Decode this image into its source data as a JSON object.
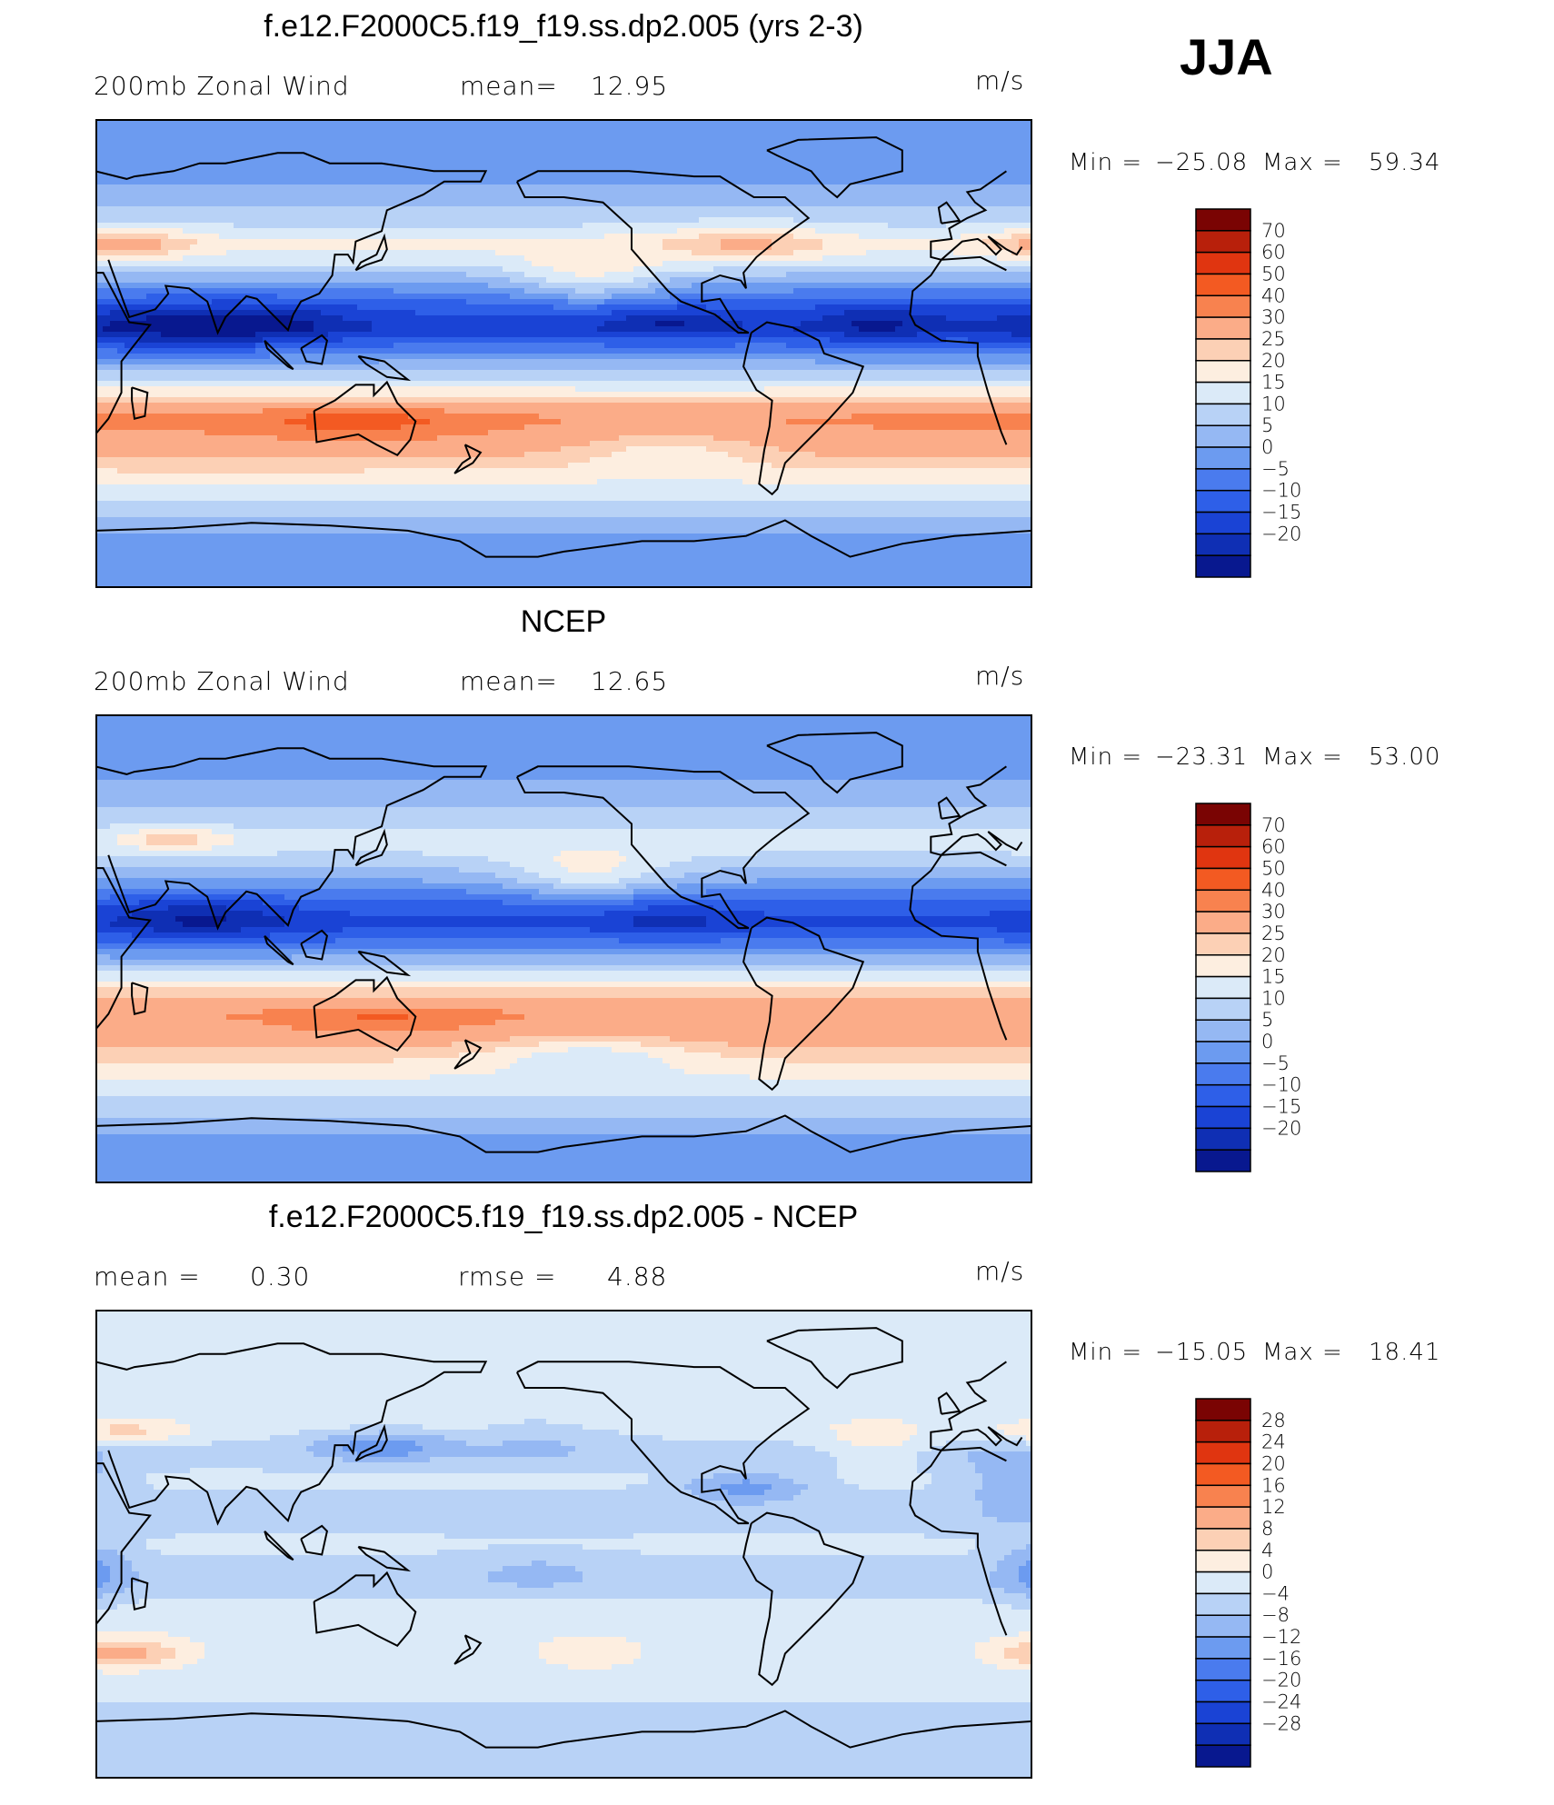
{
  "header": {
    "season": "JJA"
  },
  "panels": [
    {
      "id": "model",
      "title": "f.e12.F2000C5.f19_f19.ss.dp2.005 (yrs 2-3)",
      "left_label": "200mb  Zonal  Wind",
      "stat_label": "mean=",
      "stat_value": "12.95",
      "units": "m/s",
      "min_label": "Min  =",
      "min_value": "−25.08",
      "max_label": "Max  =",
      "max_value": "59.34",
      "colorbar": {
        "colors": [
          "#7a0403",
          "#b8200b",
          "#e03510",
          "#f35a22",
          "#f8824f",
          "#fbac88",
          "#fcd0b5",
          "#fdeee0",
          "#dbeaf8",
          "#b8d2f6",
          "#95b8f3",
          "#6c9bf0",
          "#4a7bee",
          "#2e5fe8",
          "#1a43d5",
          "#0f2fb4",
          "#08188f"
        ],
        "labels": [
          "70",
          "60",
          "50",
          "40",
          "30",
          "25",
          "20",
          "15",
          "10",
          "5",
          "0",
          "−5",
          "−10",
          "−15",
          "−20"
        ]
      },
      "field": {
        "bands": [
          {
            "lat": 90,
            "v": 3
          },
          {
            "lat": 72,
            "v": 2
          },
          {
            "lat": 62,
            "v": 6
          },
          {
            "lat": 50,
            "v": 14
          },
          {
            "lat": 42,
            "v": 22
          },
          {
            "lat": 35,
            "v": 16
          },
          {
            "lat": 27,
            "v": 4
          },
          {
            "lat": 18,
            "v": -8
          },
          {
            "lat": 10,
            "v": -14
          },
          {
            "lat": 4,
            "v": -6
          },
          {
            "lat": -5,
            "v": 8
          },
          {
            "lat": -15,
            "v": 22
          },
          {
            "lat": -25,
            "v": 42
          },
          {
            "lat": -32,
            "v": 38
          },
          {
            "lat": -42,
            "v": 28
          },
          {
            "lat": -52,
            "v": 18
          },
          {
            "lat": -62,
            "v": 10
          },
          {
            "lat": -72,
            "v": 3
          },
          {
            "lat": -90,
            "v": 0
          }
        ],
        "blobs": [
          {
            "lon": 60,
            "lat": 10,
            "rx": 45,
            "ry": 10,
            "dv": -10
          },
          {
            "lon": 100,
            "lat": 12,
            "rx": 30,
            "ry": 8,
            "dv": -6
          },
          {
            "lon": 250,
            "lat": 12,
            "rx": 25,
            "ry": 6,
            "dv": -8
          },
          {
            "lon": 330,
            "lat": 12,
            "rx": 25,
            "ry": 8,
            "dv": -8
          },
          {
            "lon": 220,
            "lat": 28,
            "rx": 30,
            "ry": 10,
            "dv": 12
          },
          {
            "lon": 130,
            "lat": -26,
            "rx": 40,
            "ry": 6,
            "dv": 14
          },
          {
            "lon": 280,
            "lat": 42,
            "rx": 30,
            "ry": 8,
            "dv": 10
          },
          {
            "lon": 40,
            "lat": 42,
            "rx": 25,
            "ry": 6,
            "dv": 14
          },
          {
            "lon": 250,
            "lat": -35,
            "rx": 40,
            "ry": 10,
            "dv": -10
          }
        ]
      }
    },
    {
      "id": "ncep",
      "title": "NCEP",
      "left_label": "200mb  Zonal  Wind",
      "stat_label": "mean=",
      "stat_value": "12.65",
      "units": "m/s",
      "min_label": "Min  =",
      "min_value": "−23.31",
      "max_label": "Max  =",
      "max_value": "53.00",
      "colorbar": {
        "colors": [
          "#7a0403",
          "#b8200b",
          "#e03510",
          "#f35a22",
          "#f8824f",
          "#fbac88",
          "#fcd0b5",
          "#fdeee0",
          "#dbeaf8",
          "#b8d2f6",
          "#95b8f3",
          "#6c9bf0",
          "#4a7bee",
          "#2e5fe8",
          "#1a43d5",
          "#0f2fb4",
          "#08188f"
        ],
        "labels": [
          "70",
          "60",
          "50",
          "40",
          "30",
          "25",
          "20",
          "15",
          "10",
          "5",
          "0",
          "−5",
          "−10",
          "−15",
          "−20"
        ]
      },
      "field": {
        "bands": [
          {
            "lat": 90,
            "v": 4
          },
          {
            "lat": 72,
            "v": 3
          },
          {
            "lat": 62,
            "v": 6
          },
          {
            "lat": 50,
            "v": 12
          },
          {
            "lat": 42,
            "v": 18
          },
          {
            "lat": 35,
            "v": 14
          },
          {
            "lat": 27,
            "v": 6
          },
          {
            "lat": 18,
            "v": -6
          },
          {
            "lat": 10,
            "v": -12
          },
          {
            "lat": 4,
            "v": -6
          },
          {
            "lat": -5,
            "v": 8
          },
          {
            "lat": -15,
            "v": 24
          },
          {
            "lat": -25,
            "v": 40
          },
          {
            "lat": -32,
            "v": 36
          },
          {
            "lat": -42,
            "v": 26
          },
          {
            "lat": -52,
            "v": 18
          },
          {
            "lat": -62,
            "v": 12
          },
          {
            "lat": -72,
            "v": 5
          },
          {
            "lat": -90,
            "v": 2
          }
        ],
        "blobs": [
          {
            "lon": 70,
            "lat": 12,
            "rx": 35,
            "ry": 8,
            "dv": -10
          },
          {
            "lon": 250,
            "lat": 12,
            "rx": 25,
            "ry": 6,
            "dv": -6
          },
          {
            "lon": 220,
            "lat": 28,
            "rx": 30,
            "ry": 10,
            "dv": 12
          },
          {
            "lon": 140,
            "lat": -27,
            "rx": 35,
            "ry": 5,
            "dv": 12
          },
          {
            "lon": 60,
            "lat": 42,
            "rx": 20,
            "ry": 5,
            "dv": 10
          },
          {
            "lon": 220,
            "lat": -40,
            "rx": 40,
            "ry": 8,
            "dv": -10
          }
        ]
      }
    },
    {
      "id": "diff",
      "title": "f.e12.F2000C5.f19_f19.ss.dp2.005 - NCEP",
      "left_label": "mean  =",
      "left_value": "0.30",
      "stat_label": "rmse  =",
      "stat_value": "4.88",
      "units": "m/s",
      "min_label": "Min  =",
      "min_value": "−15.05",
      "max_label": "Max  =",
      "max_value": "18.41",
      "colorbar": {
        "colors": [
          "#7a0403",
          "#b8200b",
          "#e03510",
          "#f35a22",
          "#f8824f",
          "#fbac88",
          "#fcd0b5",
          "#fdeee0",
          "#dbeaf8",
          "#b8d2f6",
          "#95b8f3",
          "#6c9bf0",
          "#4a7bee",
          "#2e5fe8",
          "#1a43d5",
          "#0f2fb4",
          "#08188f"
        ],
        "labels": [
          "28",
          "24",
          "20",
          "16",
          "12",
          "8",
          "4",
          "0",
          "−4",
          "−8",
          "−12",
          "−16",
          "−20",
          "−24",
          "−28"
        ]
      },
      "field": {
        "bands": [
          {
            "lat": 90,
            "v": 1
          },
          {
            "lat": 70,
            "v": 1
          },
          {
            "lat": 55,
            "v": 1
          },
          {
            "lat": 45,
            "v": 2
          },
          {
            "lat": 35,
            "v": -2
          },
          {
            "lat": 25,
            "v": 1
          },
          {
            "lat": 10,
            "v": -2
          },
          {
            "lat": 0,
            "v": 1
          },
          {
            "lat": -15,
            "v": -2
          },
          {
            "lat": -28,
            "v": 3
          },
          {
            "lat": -40,
            "v": 2
          },
          {
            "lat": -55,
            "v": 1
          },
          {
            "lat": -70,
            "v": -2
          },
          {
            "lat": -90,
            "v": -2
          }
        ],
        "blobs": [
          {
            "lon": 20,
            "lat": 25,
            "rx": 20,
            "ry": 15,
            "dv": -6
          },
          {
            "lon": 30,
            "lat": -10,
            "rx": 15,
            "ry": 12,
            "dv": -8
          },
          {
            "lon": 140,
            "lat": 38,
            "rx": 25,
            "ry": 6,
            "dv": -10
          },
          {
            "lon": 280,
            "lat": 22,
            "rx": 25,
            "ry": 6,
            "dv": -10
          },
          {
            "lon": 40,
            "lat": -42,
            "rx": 25,
            "ry": 6,
            "dv": 12
          },
          {
            "lon": 220,
            "lat": -42,
            "rx": 20,
            "ry": 6,
            "dv": 6
          },
          {
            "lon": 330,
            "lat": 40,
            "rx": 20,
            "ry": 8,
            "dv": 6
          },
          {
            "lon": 40,
            "lat": 43,
            "rx": 25,
            "ry": 5,
            "dv": 8
          },
          {
            "lon": 200,
            "lat": -10,
            "rx": 30,
            "ry": 8,
            "dv": -4
          },
          {
            "lon": 200,
            "lat": 40,
            "rx": 30,
            "ry": 8,
            "dv": -4
          }
        ]
      }
    }
  ]
}
